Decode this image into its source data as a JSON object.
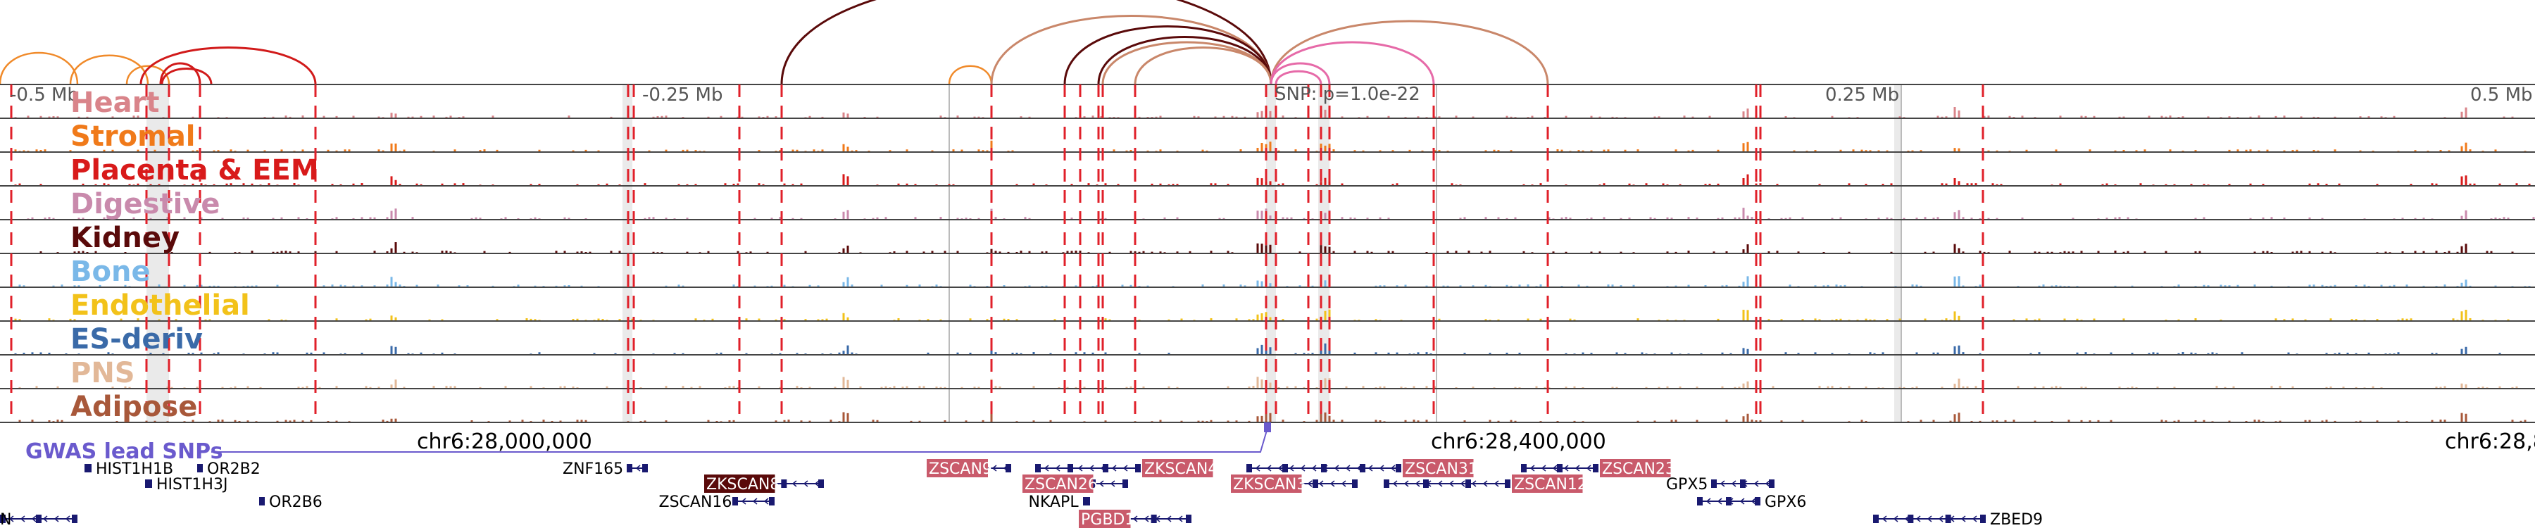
{
  "scale_labels": [
    "-0.5 Mb",
    "-0.25 Mb",
    "SNP: p=1.0e-22",
    "0.25 Mb",
    "0.5 Mb"
  ],
  "coordinate_labels": [
    "chr6:28,000,000",
    "chr6:28,400,000",
    "chr6:28,8"
  ],
  "gwas_label": "GWAS lead SNPs",
  "colors": {
    "gwas": "#6a5acd",
    "boundary": "#e0202a",
    "gene_box": "#c95a6b",
    "gene_box_dark": "#5a0a0a",
    "gene_line": "#191970",
    "arc_dark": "#5a0a0a",
    "arc_red": "#d11a1a",
    "arc_orange": "#f08a2a",
    "arc_tan": "#c9876a",
    "arc_pink": "#e66aa8"
  },
  "tracks": [
    {
      "name": "Heart",
      "color": "#d9848a"
    },
    {
      "name": "Stromal",
      "color": "#f07a1a"
    },
    {
      "name": "Placenta & EEM",
      "color": "#d81a1a"
    },
    {
      "name": "Digestive",
      "color": "#c98aac"
    },
    {
      "name": "Kidney",
      "color": "#5a0a0a"
    },
    {
      "name": "Bone",
      "color": "#7ab8e8"
    },
    {
      "name": "Endothelial",
      "color": "#f2c21a"
    },
    {
      "name": "ES-deriv",
      "color": "#3a6aa8"
    },
    {
      "name": "PNS",
      "color": "#e2b898"
    },
    {
      "name": "Adipose",
      "color": "#a8583a"
    }
  ],
  "genes": [
    {
      "name": "HIST1H1B",
      "highlight": "none"
    },
    {
      "name": "HIST1H3J",
      "highlight": "none"
    },
    {
      "name": "OR2B2",
      "highlight": "none"
    },
    {
      "name": "OR2B6",
      "highlight": "none"
    },
    {
      "name": "N",
      "highlight": "none"
    },
    {
      "name": "ZNF165",
      "highlight": "none"
    },
    {
      "name": "ZKSCAN8",
      "highlight": "dark"
    },
    {
      "name": "ZSCAN16",
      "highlight": "none"
    },
    {
      "name": "ZSCAN9",
      "highlight": "pink"
    },
    {
      "name": "ZKSCAN4",
      "highlight": "pink"
    },
    {
      "name": "ZSCAN26",
      "highlight": "pink"
    },
    {
      "name": "NKAPL",
      "highlight": "none"
    },
    {
      "name": "PGBD1",
      "highlight": "pink"
    },
    {
      "name": "ZSCAN31",
      "highlight": "pink"
    },
    {
      "name": "ZKSCAN3",
      "highlight": "pink"
    },
    {
      "name": "ZSCAN12",
      "highlight": "pink"
    },
    {
      "name": "ZSCAN23",
      "highlight": "pink"
    },
    {
      "name": "GPX5",
      "highlight": "none"
    },
    {
      "name": "GPX6",
      "highlight": "none"
    },
    {
      "name": "ZBED9",
      "highlight": "none"
    }
  ]
}
